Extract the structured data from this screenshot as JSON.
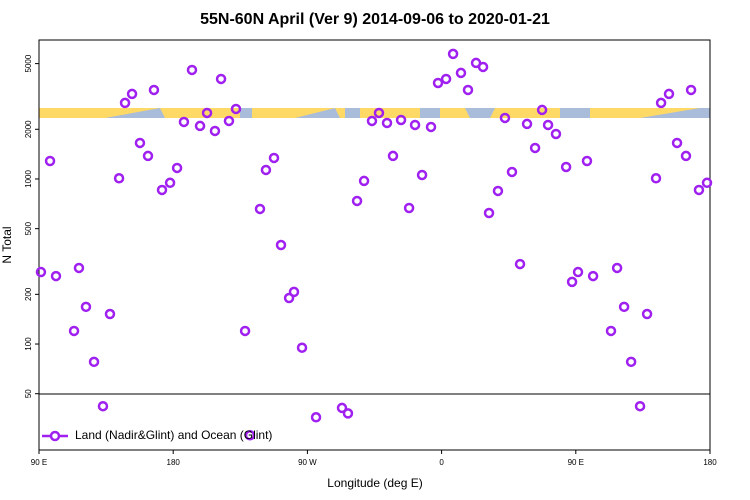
{
  "chart_data": {
    "type": "scatter",
    "title": "55N-60N April (Ver 9)   2014-09-06 to 2020-01-21",
    "xlabel": "Longitude (deg E)",
    "ylabel": "N Total",
    "log_y": true,
    "legend": "lower left",
    "xlim": [
      90,
      540
    ],
    "xticks": [
      {
        "value": 90,
        "label": "90 E"
      },
      {
        "value": 180,
        "label": "180"
      },
      {
        "value": 270,
        "label": "90 W"
      },
      {
        "value": 360,
        "label": "0"
      },
      {
        "value": 450,
        "label": "90 E"
      },
      {
        "value": 540,
        "label": "180"
      }
    ],
    "ylim": [
      22.8,
      6950
    ],
    "yticks": [
      50,
      100,
      200,
      500,
      1000,
      2000,
      5000
    ],
    "series": [
      {
        "name": "Land (Nadir&Glint) and Ocean (Glint)",
        "color": "#a020f0",
        "x": [
          91.3,
          97.4,
          101.4,
          113.5,
          116.8,
          121.5,
          126.9,
          132.9,
          137.6,
          143.7,
          147.7,
          152.4,
          157.7,
          163.1,
          167.1,
          172.5,
          177.9,
          182.6,
          187.2,
          192.6,
          198,
          202.7,
          208,
          212.1,
          217.4,
          222.1,
          228.2,
          231.5,
          238.2,
          242.2,
          247.6,
          252.3,
          257.7,
          261,
          266.4,
          275.8,
          293.2,
          297.2,
          303.3,
          308,
          313.3,
          318,
          323.4,
          327.4,
          332.8,
          338.2,
          342.2,
          346.9,
          352.9,
          357.6,
          363,
          367.7,
          373,
          377.7,
          383.1,
          387.8,
          391.8,
          397.8,
          402.5,
          407.2,
          412.6,
          417.3,
          422.7,
          427.4,
          431.4,
          436.7,
          443.5,
          447.5,
          451.5,
          457.5,
          461.6,
          473.6,
          477.7,
          482.4,
          487.1,
          493.1,
          497.8,
          503.8,
          507.2,
          512.5,
          517.9,
          523.9,
          527.3,
          532.6,
          538
        ],
        "values": [
          273,
          1285,
          258,
          120,
          289,
          168,
          78,
          42,
          152,
          1010,
          2890,
          3275,
          1653,
          1379,
          3462,
          858,
          948,
          1166,
          2215,
          4577,
          2096,
          2512,
          1954,
          4036,
          2246,
          2656,
          120,
          28,
          658,
          1134,
          1341,
          398,
          190,
          207,
          95,
          36,
          41,
          38,
          736,
          973,
          2246,
          2512,
          2185,
          1379,
          2277,
          667,
          2125,
          1057,
          2066,
          3816,
          4036,
          5726,
          4391,
          3462,
          5047,
          4771,
          622,
          846,
          2343,
          1103,
          305,
          2155,
          1541,
          2620,
          2125,
          1873,
          1182,
          238,
          273,
          1285,
          258,
          120,
          289,
          168,
          78,
          42,
          152,
          1010,
          2890,
          3275,
          1653,
          1379,
          3462,
          858,
          948
        ]
      }
    ]
  }
}
